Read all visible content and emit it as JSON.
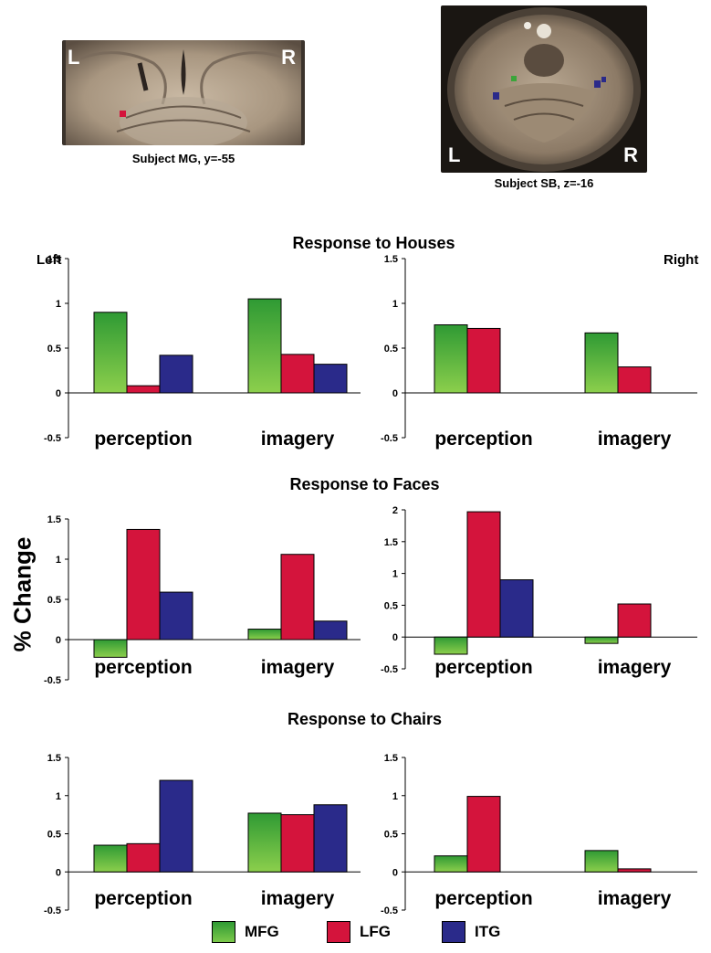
{
  "images": [
    {
      "caption": "Subject MG, y=-55",
      "left_label": "L",
      "right_label": "R"
    },
    {
      "caption": "Subject SB, z=-16",
      "left_label": "L",
      "right_label": "R"
    }
  ],
  "y_axis_label": "% Change",
  "hemisphere_labels": {
    "left": "Left",
    "right": "Right"
  },
  "colors": {
    "MFG": "#3aa53a",
    "LFG": "#d4143c",
    "ITG": "#2a2a8a"
  },
  "legend": [
    {
      "name": "MFG",
      "color": "#3aa53a"
    },
    {
      "name": "LFG",
      "color": "#d4143c"
    },
    {
      "name": "ITG",
      "color": "#2a2a8a"
    }
  ],
  "chart_data": [
    {
      "type": "bar",
      "title": "Response to Houses",
      "panel": "left",
      "categories": [
        "perception",
        "imagery"
      ],
      "ylim": [
        -0.5,
        1.5
      ],
      "yticks": [
        "1.5",
        "1",
        "0.5",
        "0",
        "-0.5"
      ],
      "series": [
        {
          "name": "MFG",
          "values": [
            0.9,
            1.05
          ]
        },
        {
          "name": "LFG",
          "values": [
            0.08,
            0.43
          ]
        },
        {
          "name": "ITG",
          "values": [
            0.42,
            0.32
          ]
        }
      ]
    },
    {
      "type": "bar",
      "title": "Response to Houses",
      "panel": "right",
      "categories": [
        "perception",
        "imagery"
      ],
      "ylim": [
        -0.5,
        1.5
      ],
      "yticks": [
        "1.5",
        "1",
        "0.5",
        "0",
        "-0.5"
      ],
      "series": [
        {
          "name": "MFG",
          "values": [
            0.76,
            0.67
          ]
        },
        {
          "name": "LFG",
          "values": [
            0.72,
            0.29
          ]
        },
        {
          "name": "ITG",
          "values": [
            null,
            null
          ]
        }
      ]
    },
    {
      "type": "bar",
      "title": "Response to Faces",
      "panel": "left",
      "categories": [
        "perception",
        "imagery"
      ],
      "ylim": [
        -0.5,
        1.5
      ],
      "yticks": [
        "1.5",
        "1",
        "0.5",
        "0",
        "-0.5"
      ],
      "series": [
        {
          "name": "MFG",
          "values": [
            -0.22,
            0.13
          ]
        },
        {
          "name": "LFG",
          "values": [
            1.37,
            1.06
          ]
        },
        {
          "name": "ITG",
          "values": [
            0.59,
            0.23
          ]
        }
      ]
    },
    {
      "type": "bar",
      "title": "Response to Faces",
      "panel": "right",
      "categories": [
        "perception",
        "imagery"
      ],
      "ylim": [
        -0.5,
        2
      ],
      "yticks": [
        "2",
        "1.5",
        "1",
        "0.5",
        "0",
        "-0.5"
      ],
      "series": [
        {
          "name": "MFG",
          "values": [
            -0.27,
            -0.1
          ]
        },
        {
          "name": "LFG",
          "values": [
            1.97,
            0.52
          ]
        },
        {
          "name": "ITG",
          "values": [
            0.9,
            null
          ]
        }
      ]
    },
    {
      "type": "bar",
      "title": "Response to Chairs",
      "panel": "left",
      "categories": [
        "perception",
        "imagery"
      ],
      "ylim": [
        -0.5,
        1.5
      ],
      "yticks": [
        "1.5",
        "1",
        "0.5",
        "0",
        "-0.5"
      ],
      "series": [
        {
          "name": "MFG",
          "values": [
            0.35,
            0.77
          ]
        },
        {
          "name": "LFG",
          "values": [
            0.37,
            0.75
          ]
        },
        {
          "name": "ITG",
          "values": [
            1.2,
            0.88
          ]
        }
      ]
    },
    {
      "type": "bar",
      "title": "Response to Chairs",
      "panel": "right",
      "categories": [
        "perception",
        "imagery"
      ],
      "ylim": [
        -0.5,
        1.5
      ],
      "yticks": [
        "1.5",
        "1",
        "0.5",
        "0",
        "-0.5"
      ],
      "series": [
        {
          "name": "MFG",
          "values": [
            0.21,
            0.28
          ]
        },
        {
          "name": "LFG",
          "values": [
            0.99,
            0.04
          ]
        },
        {
          "name": "ITG",
          "values": [
            null,
            null
          ]
        }
      ]
    }
  ],
  "section_titles": [
    "Response to Houses",
    "Response to Faces",
    "Response to Chairs"
  ]
}
